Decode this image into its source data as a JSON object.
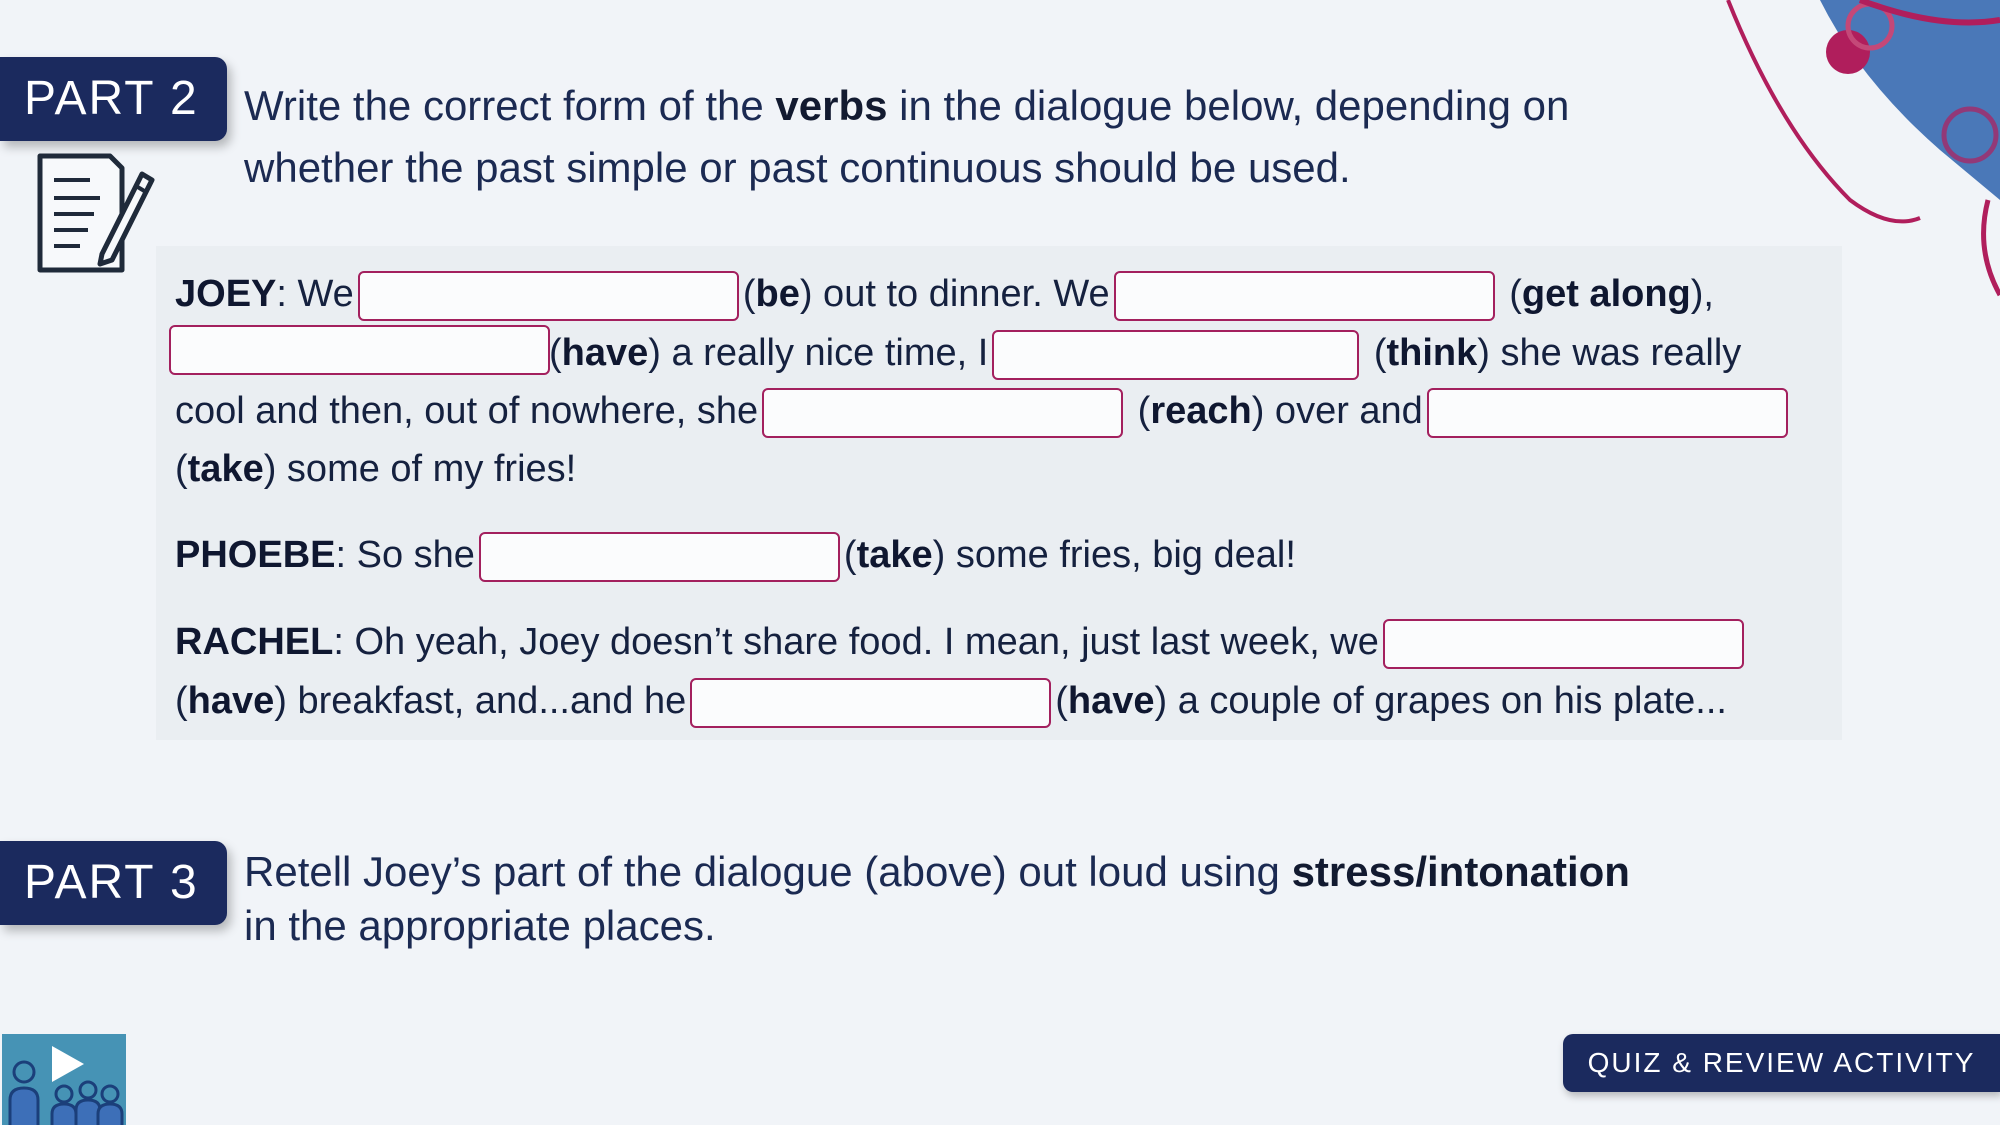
{
  "part2": {
    "tag": "PART 2",
    "instruction_line1_pre": "Write the correct form of the ",
    "instruction_line1_bold": "verbs",
    "instruction_line1_post": " in the dialogue below, depending on",
    "instruction_line2": "whether the past simple or past continuous should be used."
  },
  "dialogue": {
    "joey_speaker": "JOEY",
    "joey_l1_a": ": We",
    "joey_l1_verb1": "be",
    "joey_l1_b": " out to dinner. We",
    "joey_l1_verb2": "get along",
    "joey_l1_c": "),",
    "joey_l2_verb1": "have",
    "joey_l2_a": " a really nice time, I",
    "joey_l2_verb2": "think",
    "joey_l2_b": " she was really",
    "joey_l3_a": "cool and then, out of nowhere, she",
    "joey_l3_verb1": "reach",
    "joey_l3_b": " over and",
    "joey_l4_verb": "take",
    "joey_l4_a": " some of my fries!",
    "phoebe_speaker": "PHOEBE",
    "phoebe_a": ": So she",
    "phoebe_verb": "take",
    "phoebe_b": " some fries, big deal!",
    "rachel_speaker": "RACHEL",
    "rachel_l1_a": ": Oh yeah, Joey doesn’t share food. I mean, just last week, we",
    "rachel_l2_verb1": "have",
    "rachel_l2_a": " breakfast, and...and he",
    "rachel_l2_verb2": "have",
    "rachel_l2_b": " a couple of grapes on his plate..."
  },
  "answers": {
    "blank1": "",
    "blank2": "",
    "blank3": "",
    "blank4": "",
    "blank5": "",
    "blank6": "",
    "blank7": "",
    "blank8": "",
    "blank9": ""
  },
  "part3": {
    "tag": "PART 3",
    "instruction_line1_pre": "Retell Joey’s part of the dialogue (above) out loud using ",
    "instruction_line1_bold": "stress/intonation",
    "instruction_line2": "in the appropriate places."
  },
  "footer": {
    "button_label": "QUIZ & REVIEW ACTIVITY"
  },
  "colors": {
    "navy": "#1b2a5e",
    "blank_border": "#a3205e",
    "accent_blue": "#4a78b8",
    "accent_magenta": "#b01e5c"
  },
  "icons": {
    "worksheet": "document-pencil-icon",
    "logo": "video-classroom-icon"
  }
}
